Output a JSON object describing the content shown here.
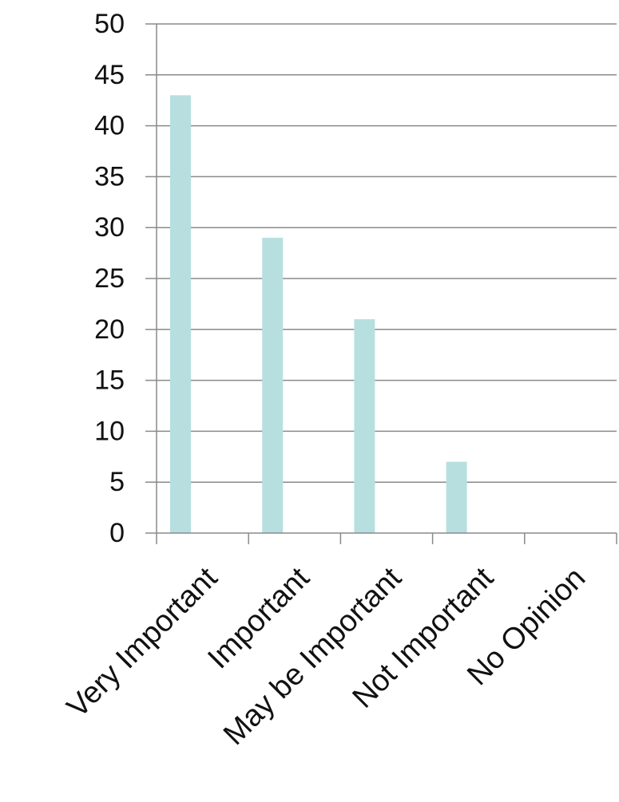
{
  "chart_data": {
    "type": "bar",
    "categories": [
      "Very Important",
      "Important",
      "May be Important",
      "Not Important",
      "No Opinion"
    ],
    "values": [
      43,
      29,
      21,
      7,
      0
    ],
    "title": "",
    "xlabel": "",
    "ylabel": "",
    "ylim": [
      0,
      50
    ],
    "yticks": [
      0,
      5,
      10,
      15,
      20,
      25,
      30,
      35,
      40,
      45,
      50
    ],
    "grid": true,
    "legend": "none",
    "bar_color": "#b7dfe0",
    "grid_color": "#8a8a8a",
    "axis_color": "#8a8a8a",
    "text_color": "#111111"
  }
}
